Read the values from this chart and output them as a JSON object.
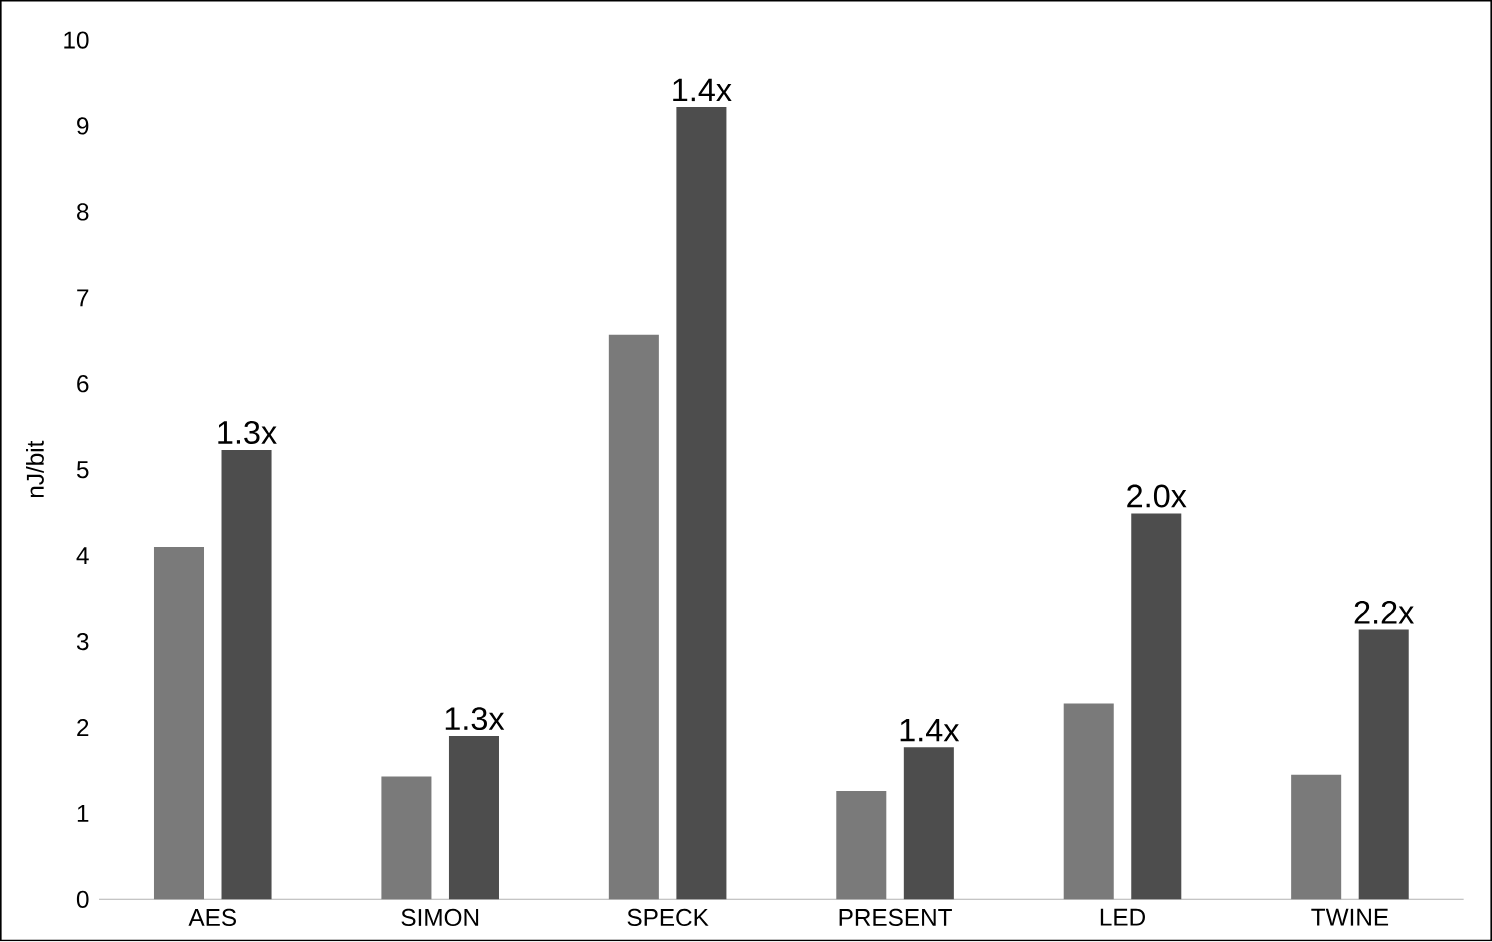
{
  "chart_data": {
    "type": "bar",
    "ylabel": "nJ/bit",
    "categories": [
      "AES",
      "SIMON",
      "SPECK",
      "PRESENT",
      "LED",
      "TWINE"
    ],
    "series": [
      {
        "color": "#7a7a7a",
        "values": [
          4.1,
          1.43,
          6.57,
          1.26,
          2.28,
          1.45
        ]
      },
      {
        "color": "#4d4d4d",
        "values": [
          5.23,
          1.9,
          9.22,
          1.77,
          4.49,
          3.14
        ]
      }
    ],
    "ylim": [
      0,
      10
    ],
    "yticks": [
      0,
      1,
      2,
      3,
      4,
      5,
      6,
      7,
      8,
      9,
      10
    ],
    "grid": false,
    "legend": false,
    "annotations": [
      "1.3x",
      "1.3x",
      "1.4x",
      "1.4x",
      "2.0x",
      "2.2x"
    ]
  }
}
